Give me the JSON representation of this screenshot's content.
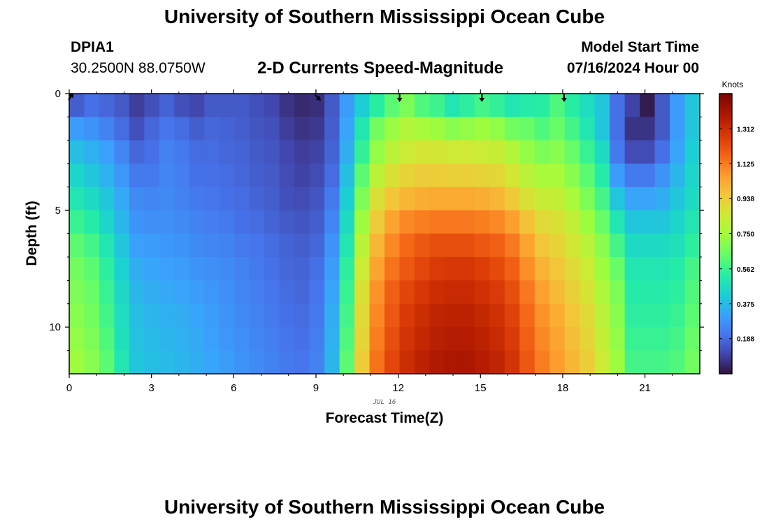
{
  "page": {
    "title": "University of Southern Mississippi Ocean Cube",
    "footer_title": "University of Southern Mississippi Ocean Cube"
  },
  "station": {
    "id": "DPIA1",
    "coords": "30.2500N  88.0750W"
  },
  "header": {
    "subtitle": "2-D Currents Speed-Magnitude",
    "model_start_label": "Model Start Time",
    "model_start_value": "07/16/2024 Hour 00"
  },
  "chart_data": {
    "type": "heatmap",
    "title": "2-D Currents Speed-Magnitude",
    "xlabel": "Forecast Time(Z)",
    "ylabel": "Depth (ft)",
    "date_annotation": "JUL 16",
    "xlim": [
      0,
      23
    ],
    "ylim": [
      0,
      12
    ],
    "x_ticks": [
      0,
      3,
      6,
      9,
      12,
      15,
      18,
      21
    ],
    "y_ticks": [
      0,
      5,
      10
    ],
    "colorbar": {
      "label": "Knots",
      "range": [
        0,
        1.5
      ],
      "ticks": [
        0.188,
        0.375,
        0.562,
        0.75,
        0.938,
        1.125,
        1.312
      ]
    },
    "depth_bins_ft": [
      0,
      1,
      2,
      3,
      4,
      5,
      6,
      7,
      8,
      9,
      10,
      11
    ],
    "speed_knots": [
      [
        0.16,
        0.2,
        0.18,
        0.15,
        0.09,
        0.13,
        0.17,
        0.13,
        0.11,
        0.15,
        0.15,
        0.15,
        0.13,
        0.11,
        0.07,
        0.05,
        0.06,
        0.15,
        0.3,
        0.42,
        0.53,
        0.62,
        0.68,
        0.6,
        0.57,
        0.5,
        0.54,
        0.58,
        0.55,
        0.5,
        0.52,
        0.53,
        0.6,
        0.53,
        0.47,
        0.4,
        0.2,
        0.1,
        0.02,
        0.15,
        0.3,
        0.4
      ],
      [
        0.3,
        0.28,
        0.24,
        0.19,
        0.13,
        0.18,
        0.21,
        0.19,
        0.16,
        0.18,
        0.17,
        0.16,
        0.14,
        0.13,
        0.09,
        0.07,
        0.08,
        0.16,
        0.32,
        0.5,
        0.66,
        0.73,
        0.78,
        0.76,
        0.74,
        0.7,
        0.72,
        0.74,
        0.72,
        0.66,
        0.64,
        0.6,
        0.64,
        0.58,
        0.5,
        0.4,
        0.2,
        0.07,
        0.07,
        0.15,
        0.3,
        0.4
      ],
      [
        0.38,
        0.35,
        0.31,
        0.25,
        0.18,
        0.2,
        0.24,
        0.22,
        0.19,
        0.19,
        0.18,
        0.17,
        0.15,
        0.14,
        0.11,
        0.09,
        0.1,
        0.17,
        0.34,
        0.55,
        0.72,
        0.8,
        0.84,
        0.86,
        0.86,
        0.85,
        0.85,
        0.84,
        0.83,
        0.78,
        0.72,
        0.68,
        0.7,
        0.64,
        0.56,
        0.46,
        0.22,
        0.12,
        0.12,
        0.2,
        0.32,
        0.42
      ],
      [
        0.44,
        0.4,
        0.35,
        0.29,
        0.22,
        0.22,
        0.25,
        0.23,
        0.2,
        0.2,
        0.19,
        0.18,
        0.16,
        0.15,
        0.12,
        0.1,
        0.12,
        0.19,
        0.38,
        0.62,
        0.8,
        0.88,
        0.92,
        0.94,
        0.94,
        0.93,
        0.93,
        0.92,
        0.91,
        0.86,
        0.8,
        0.76,
        0.76,
        0.7,
        0.62,
        0.52,
        0.3,
        0.22,
        0.22,
        0.28,
        0.36,
        0.44
      ],
      [
        0.5,
        0.46,
        0.4,
        0.33,
        0.26,
        0.25,
        0.26,
        0.24,
        0.22,
        0.21,
        0.2,
        0.19,
        0.17,
        0.16,
        0.13,
        0.12,
        0.14,
        0.22,
        0.42,
        0.68,
        0.88,
        0.96,
        1.0,
        1.02,
        1.03,
        1.03,
        1.03,
        1.02,
        1.0,
        0.95,
        0.88,
        0.83,
        0.82,
        0.76,
        0.68,
        0.58,
        0.4,
        0.32,
        0.32,
        0.34,
        0.4,
        0.46
      ],
      [
        0.56,
        0.52,
        0.44,
        0.36,
        0.28,
        0.27,
        0.27,
        0.26,
        0.24,
        0.23,
        0.22,
        0.2,
        0.19,
        0.17,
        0.15,
        0.14,
        0.16,
        0.25,
        0.46,
        0.74,
        0.94,
        1.04,
        1.1,
        1.12,
        1.13,
        1.13,
        1.13,
        1.12,
        1.1,
        1.05,
        0.97,
        0.9,
        0.88,
        0.82,
        0.74,
        0.64,
        0.5,
        0.4,
        0.4,
        0.4,
        0.44,
        0.5
      ],
      [
        0.62,
        0.58,
        0.5,
        0.4,
        0.31,
        0.3,
        0.29,
        0.28,
        0.26,
        0.25,
        0.24,
        0.22,
        0.21,
        0.19,
        0.17,
        0.16,
        0.18,
        0.28,
        0.5,
        0.8,
        1.0,
        1.1,
        1.16,
        1.2,
        1.22,
        1.22,
        1.22,
        1.2,
        1.18,
        1.13,
        1.04,
        0.96,
        0.92,
        0.86,
        0.8,
        0.7,
        0.58,
        0.46,
        0.46,
        0.46,
        0.48,
        0.54
      ],
      [
        0.66,
        0.62,
        0.54,
        0.43,
        0.34,
        0.32,
        0.31,
        0.3,
        0.28,
        0.27,
        0.26,
        0.24,
        0.22,
        0.2,
        0.18,
        0.17,
        0.2,
        0.3,
        0.54,
        0.84,
        1.04,
        1.14,
        1.2,
        1.24,
        1.27,
        1.28,
        1.28,
        1.26,
        1.23,
        1.18,
        1.09,
        1.01,
        0.96,
        0.9,
        0.84,
        0.74,
        0.64,
        0.5,
        0.5,
        0.5,
        0.52,
        0.58
      ],
      [
        0.68,
        0.64,
        0.56,
        0.45,
        0.36,
        0.34,
        0.33,
        0.32,
        0.3,
        0.29,
        0.27,
        0.25,
        0.23,
        0.21,
        0.19,
        0.18,
        0.21,
        0.32,
        0.56,
        0.88,
        1.08,
        1.18,
        1.24,
        1.28,
        1.31,
        1.32,
        1.32,
        1.3,
        1.27,
        1.22,
        1.13,
        1.05,
        0.99,
        0.93,
        0.87,
        0.77,
        0.68,
        0.52,
        0.52,
        0.52,
        0.54,
        0.6
      ],
      [
        0.7,
        0.66,
        0.58,
        0.47,
        0.38,
        0.36,
        0.35,
        0.34,
        0.32,
        0.3,
        0.28,
        0.26,
        0.24,
        0.22,
        0.2,
        0.19,
        0.22,
        0.34,
        0.58,
        0.9,
        1.1,
        1.2,
        1.27,
        1.31,
        1.34,
        1.35,
        1.35,
        1.33,
        1.3,
        1.25,
        1.16,
        1.08,
        1.02,
        0.96,
        0.9,
        0.8,
        0.7,
        0.54,
        0.54,
        0.54,
        0.56,
        0.62
      ],
      [
        0.72,
        0.68,
        0.6,
        0.48,
        0.39,
        0.37,
        0.36,
        0.35,
        0.33,
        0.31,
        0.29,
        0.27,
        0.25,
        0.23,
        0.21,
        0.2,
        0.23,
        0.35,
        0.6,
        0.92,
        1.12,
        1.22,
        1.29,
        1.33,
        1.36,
        1.37,
        1.37,
        1.35,
        1.32,
        1.27,
        1.18,
        1.1,
        1.04,
        0.98,
        0.92,
        0.82,
        0.72,
        0.56,
        0.56,
        0.56,
        0.58,
        0.64
      ],
      [
        0.74,
        0.7,
        0.62,
        0.5,
        0.4,
        0.38,
        0.37,
        0.36,
        0.34,
        0.32,
        0.3,
        0.28,
        0.26,
        0.24,
        0.22,
        0.21,
        0.24,
        0.36,
        0.62,
        0.94,
        1.14,
        1.24,
        1.31,
        1.35,
        1.38,
        1.39,
        1.39,
        1.37,
        1.34,
        1.29,
        1.2,
        1.12,
        1.06,
        1.0,
        0.94,
        0.84,
        0.74,
        0.58,
        0.58,
        0.58,
        0.6,
        0.66
      ]
    ],
    "vectors": [
      {
        "hour": 0,
        "depth": 0,
        "dir": "NE"
      },
      {
        "hour": 9,
        "depth": 0,
        "dir": "SE"
      },
      {
        "hour": 12,
        "depth": 0,
        "dir": "S"
      },
      {
        "hour": 15,
        "depth": 0,
        "dir": "S"
      },
      {
        "hour": 18,
        "depth": 0,
        "dir": "S"
      }
    ]
  }
}
